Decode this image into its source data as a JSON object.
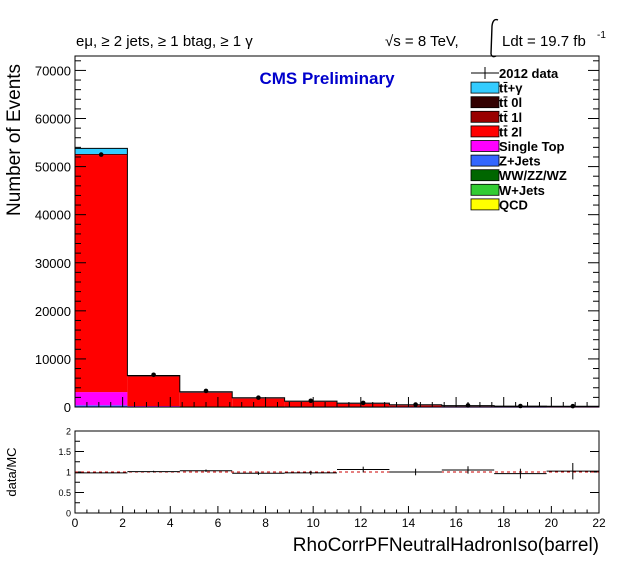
{
  "header": {
    "selection": "eμ, ≥ 2 jets, ≥ 1 btag, ≥ 1 γ",
    "energy": "√s = 8 TeV,",
    "lumi": "Ldt = 19.7 fb",
    "lumi_exp": "-1",
    "cms_label": "CMS Preliminary"
  },
  "legend": {
    "items": [
      {
        "label": "2012 data",
        "kind": "data",
        "color": "#000000"
      },
      {
        "label": "tt̄+γ",
        "kind": "box",
        "color": "#33ccff"
      },
      {
        "label": "tt̄ 0l",
        "kind": "box",
        "color": "#330000"
      },
      {
        "label": "tt̄ 1l",
        "kind": "box",
        "color": "#990000"
      },
      {
        "label": "tt̄ 2l",
        "kind": "box",
        "color": "#ff0000"
      },
      {
        "label": "Single Top",
        "kind": "box",
        "color": "#ff00ff"
      },
      {
        "label": "Z+Jets",
        "kind": "box",
        "color": "#3366ff"
      },
      {
        "label": "WW/ZZ/WZ",
        "kind": "box",
        "color": "#006600"
      },
      {
        "label": "W+Jets",
        "kind": "box",
        "color": "#33cc33"
      },
      {
        "label": "QCD",
        "kind": "box",
        "color": "#ffff00"
      }
    ]
  },
  "chart_data": [
    {
      "type": "bar",
      "subtype": "stacked histogram with data points",
      "xlabel": "RhoCorrPFNeutralHadronIso(barrel)",
      "ylabel": "Number of Events",
      "xlim": [
        0,
        22
      ],
      "ylim": [
        0,
        73000
      ],
      "x_ticks": [
        0,
        2,
        4,
        6,
        8,
        10,
        12,
        14,
        16,
        18,
        20,
        22
      ],
      "y_ticks": [
        0,
        10000,
        20000,
        30000,
        40000,
        50000,
        60000,
        70000
      ],
      "bin_edges": [
        0,
        2.2,
        4.4,
        6.6,
        8.8,
        11,
        13.2,
        15.4,
        17.6,
        19.8,
        22
      ],
      "stack_order": [
        "QCD",
        "W+Jets",
        "WW/ZZ/WZ",
        "Z+Jets",
        "Single Top",
        "tt̄ 2l",
        "tt̄ 1l",
        "tt̄ 0l",
        "tt̄+γ"
      ],
      "series": [
        {
          "name": "QCD",
          "color": "#ffff00",
          "values": [
            0,
            0,
            0,
            0,
            0,
            0,
            0,
            0,
            0,
            0
          ]
        },
        {
          "name": "W+Jets",
          "color": "#33cc33",
          "values": [
            40,
            5,
            2,
            1,
            0,
            0,
            0,
            0,
            0,
            0
          ]
        },
        {
          "name": "WW/ZZ/WZ",
          "color": "#006600",
          "values": [
            60,
            8,
            4,
            2,
            1,
            1,
            0,
            0,
            0,
            0
          ]
        },
        {
          "name": "Z+Jets",
          "color": "#3366ff",
          "values": [
            250,
            30,
            15,
            8,
            5,
            3,
            2,
            1,
            1,
            0
          ]
        },
        {
          "name": "Single Top",
          "color": "#ff00ff",
          "values": [
            2750,
            157,
            79,
            39,
            24,
            16,
            8,
            4,
            3,
            2
          ]
        },
        {
          "name": "tt̄ 2l",
          "color": "#ff0000",
          "values": [
            49300,
            6250,
            3000,
            1850,
            1180,
            780,
            460,
            280,
            185,
            150
          ]
        },
        {
          "name": "tt̄ 1l",
          "color": "#990000",
          "values": [
            200,
            25,
            12,
            6,
            4,
            2,
            1,
            1,
            0,
            0
          ]
        },
        {
          "name": "tt̄ 0l",
          "color": "#330000",
          "values": [
            20,
            2,
            1,
            1,
            0,
            0,
            0,
            0,
            0,
            0
          ]
        },
        {
          "name": "tt̄+γ",
          "color": "#33ccff",
          "values": [
            1180,
            80,
            50,
            30,
            20,
            10,
            6,
            4,
            2,
            1
          ]
        }
      ],
      "data_points": {
        "name": "2012 data",
        "x": [
          1.1,
          3.3,
          5.5,
          7.7,
          9.9,
          12.1,
          14.3,
          16.5,
          18.7,
          20.9
        ],
        "y": [
          52500,
          6700,
          3350,
          1950,
          1300,
          850,
          520,
          330,
          210,
          180
        ]
      }
    },
    {
      "type": "scatter",
      "ylabel": "data/MC",
      "xlim": [
        0,
        22
      ],
      "ylim": [
        0,
        2
      ],
      "x_ticks": [
        0,
        2,
        4,
        6,
        8,
        10,
        12,
        14,
        16,
        18,
        20,
        22
      ],
      "y_ticks": [
        0,
        0.5,
        1,
        1.5,
        2
      ],
      "y_tick_labels": [
        "0",
        "0.5",
        "1",
        "1.5",
        "2"
      ],
      "reference_line": 1,
      "ratio": {
        "x": [
          1.1,
          3.3,
          5.5,
          7.7,
          9.9,
          12.1,
          14.3,
          16.5,
          18.7,
          20.9
        ],
        "y": [
          0.98,
          1.01,
          1.03,
          0.97,
          0.98,
          1.06,
          1.0,
          1.05,
          0.96,
          1.02
        ],
        "err": [
          0.01,
          0.02,
          0.03,
          0.04,
          0.05,
          0.07,
          0.08,
          0.09,
          0.12,
          0.2
        ]
      }
    }
  ]
}
